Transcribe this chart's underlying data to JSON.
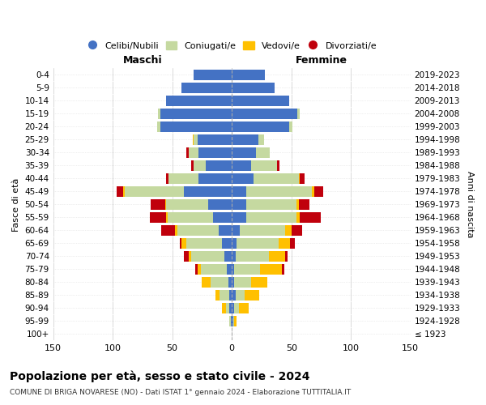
{
  "age_groups": [
    "100+",
    "95-99",
    "90-94",
    "85-89",
    "80-84",
    "75-79",
    "70-74",
    "65-69",
    "60-64",
    "55-59",
    "50-54",
    "45-49",
    "40-44",
    "35-39",
    "30-34",
    "25-29",
    "20-24",
    "15-19",
    "10-14",
    "5-9",
    "0-4"
  ],
  "birth_years": [
    "≤ 1923",
    "1924-1928",
    "1929-1933",
    "1934-1938",
    "1939-1943",
    "1944-1948",
    "1949-1953",
    "1954-1958",
    "1959-1963",
    "1964-1968",
    "1969-1973",
    "1974-1978",
    "1979-1983",
    "1984-1988",
    "1989-1993",
    "1994-1998",
    "1999-2003",
    "2004-2008",
    "2009-2013",
    "2014-2018",
    "2019-2023"
  ],
  "maschi": {
    "celibi": [
      0,
      1,
      2,
      2,
      3,
      4,
      6,
      8,
      11,
      16,
      20,
      40,
      28,
      22,
      28,
      29,
      60,
      60,
      55,
      42,
      32
    ],
    "coniugati": [
      0,
      1,
      3,
      8,
      15,
      22,
      28,
      30,
      35,
      38,
      35,
      50,
      25,
      10,
      8,
      3,
      3,
      2,
      0,
      0,
      0
    ],
    "vedovi": [
      0,
      0,
      3,
      4,
      7,
      3,
      2,
      4,
      2,
      1,
      1,
      1,
      0,
      0,
      0,
      1,
      0,
      0,
      0,
      0,
      0
    ],
    "divorziati": [
      0,
      0,
      0,
      0,
      0,
      2,
      4,
      2,
      11,
      14,
      12,
      6,
      2,
      2,
      2,
      0,
      0,
      0,
      0,
      0,
      0
    ]
  },
  "femmine": {
    "nubili": [
      0,
      1,
      2,
      3,
      2,
      2,
      3,
      4,
      7,
      12,
      12,
      12,
      18,
      16,
      20,
      22,
      48,
      55,
      48,
      36,
      28
    ],
    "coniugate": [
      0,
      1,
      4,
      8,
      14,
      22,
      28,
      35,
      38,
      42,
      42,
      55,
      38,
      22,
      12,
      5,
      3,
      2,
      0,
      0,
      0
    ],
    "vedove": [
      0,
      2,
      8,
      12,
      14,
      18,
      14,
      10,
      5,
      3,
      2,
      2,
      1,
      0,
      0,
      0,
      0,
      0,
      0,
      0,
      0
    ],
    "divorziate": [
      0,
      0,
      0,
      0,
      0,
      2,
      2,
      4,
      9,
      18,
      9,
      8,
      4,
      2,
      0,
      0,
      0,
      0,
      0,
      0,
      0
    ]
  },
  "colors": {
    "celibi": "#4472c4",
    "coniugati": "#c5d9a0",
    "vedovi": "#ffc000",
    "divorziati": "#c0000c"
  },
  "legend_labels": [
    "Celibi/Nubili",
    "Coniugati/e",
    "Vedovi/e",
    "Divorziati/e"
  ],
  "xlim": 150,
  "title": "Popolazione per età, sesso e stato civile - 2024",
  "subtitle": "COMUNE DI BRIGA NOVARESE (NO) - Dati ISTAT 1° gennaio 2024 - Elaborazione TUTTITALIA.IT",
  "ylabel": "Fasce di età",
  "ylabel_right": "Anni di nascita",
  "maschi_label": "Maschi",
  "femmine_label": "Femmine"
}
